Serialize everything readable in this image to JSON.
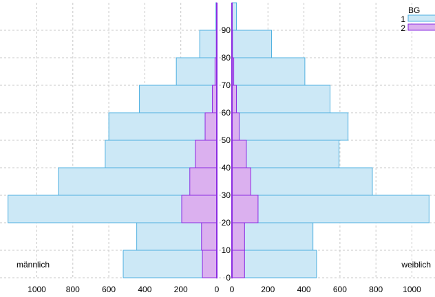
{
  "chart_data": {
    "type": "bar",
    "orientation": "horizontal",
    "subtype": "population-pyramid",
    "age_groups": [
      "0-10",
      "10-20",
      "20-30",
      "30-40",
      "40-50",
      "50-60",
      "60-70",
      "70-80",
      "80-90",
      "90-100"
    ],
    "y_ticks": [
      0,
      10,
      20,
      30,
      40,
      50,
      60,
      70,
      80,
      90
    ],
    "x_ticks": [
      0,
      200,
      400,
      600,
      800,
      1000
    ],
    "xlim": [
      0,
      1130
    ],
    "ylim": [
      -1,
      98
    ],
    "grid": true,
    "legend": {
      "title": "BG",
      "placement": "top-right"
    },
    "left_label": "männlich",
    "right_label": "weiblich",
    "series": [
      {
        "name": "1",
        "color": "#cce8f6",
        "stroke": "#4fb0e0",
        "male": [
          520,
          445,
          1160,
          880,
          620,
          600,
          430,
          225,
          95,
          5
        ],
        "female": [
          470,
          450,
          1095,
          780,
          595,
          645,
          545,
          405,
          220,
          25
        ]
      },
      {
        "name": "2",
        "color": "#dbb0ef",
        "stroke": "#8a2be2",
        "male": [
          80,
          85,
          195,
          150,
          120,
          65,
          25,
          10,
          3,
          1
        ],
        "female": [
          70,
          70,
          145,
          105,
          80,
          40,
          25,
          10,
          3,
          1
        ]
      }
    ]
  }
}
